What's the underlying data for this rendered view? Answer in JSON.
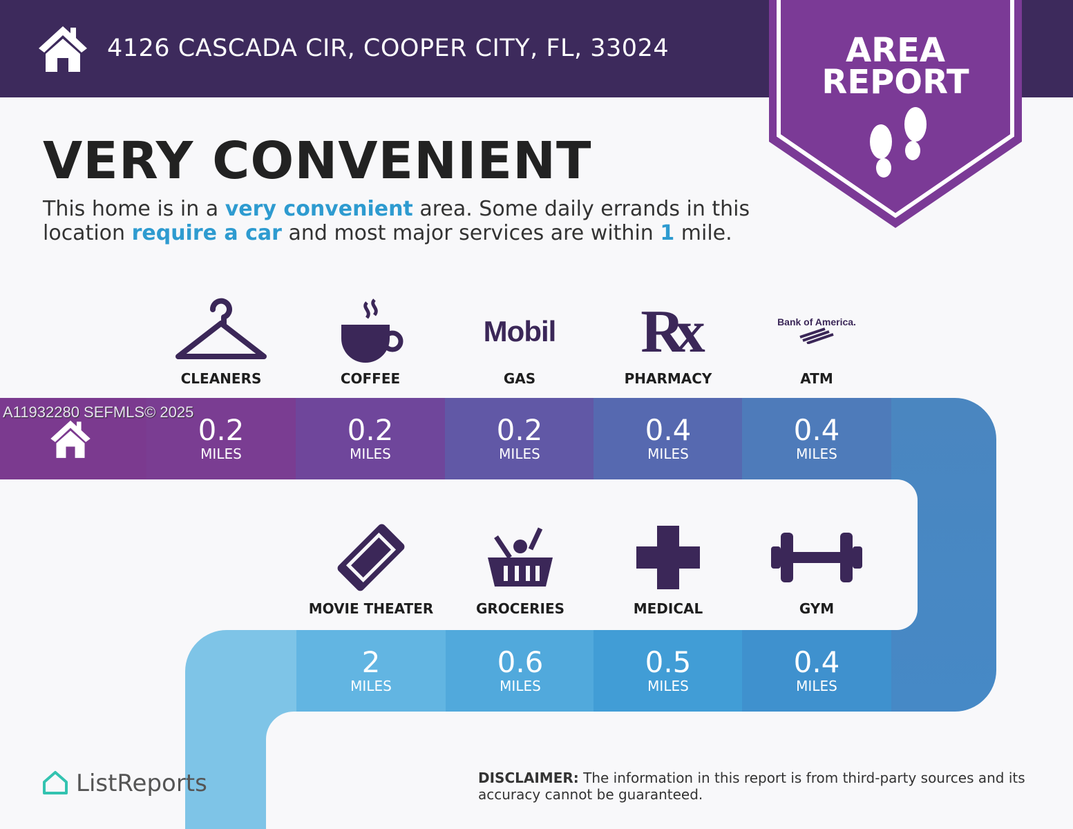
{
  "header": {
    "address": "4126 CASCADA CIR, COOPER CITY, FL, 33024",
    "icon": "home-icon"
  },
  "badge": {
    "line1": "AREA",
    "line2": "REPORT",
    "icon": "footprints-icon",
    "color": "#7b3a96"
  },
  "title": "VERY CONVENIENT",
  "description": {
    "p1": "This home is in a ",
    "h1": "very convenient",
    "p2": " area. Some daily errands in this location ",
    "h2": "require a car",
    "p3": " and most major services are within ",
    "h3": "1",
    "p4": " mile."
  },
  "watermark": "A11932280  SEFMLS© 2025",
  "row1": [
    {
      "label": "CLEANERS",
      "value": "0.2",
      "unit": "MILES",
      "icon": "hanger-icon"
    },
    {
      "label": "COFFEE",
      "value": "0.2",
      "unit": "MILES",
      "icon": "coffee-icon"
    },
    {
      "label": "GAS",
      "value": "0.2",
      "unit": "MILES",
      "icon": "mobil-logo",
      "logo_text": "Mobil"
    },
    {
      "label": "PHARMACY",
      "value": "0.4",
      "unit": "MILES",
      "icon": "rx-icon",
      "logo_text": "Rx"
    },
    {
      "label": "ATM",
      "value": "0.4",
      "unit": "MILES",
      "icon": "bank-of-america-logo",
      "logo_text": "Bank of America."
    }
  ],
  "row2": [
    {
      "label": "MOVIE THEATER",
      "value": "2",
      "unit": "MILES",
      "icon": "ticket-icon"
    },
    {
      "label": "GROCERIES",
      "value": "0.6",
      "unit": "MILES",
      "icon": "basket-icon"
    },
    {
      "label": "MEDICAL",
      "value": "0.5",
      "unit": "MILES",
      "icon": "medical-cross-icon"
    },
    {
      "label": "GYM",
      "value": "0.4",
      "unit": "MILES",
      "icon": "dumbbell-icon"
    }
  ],
  "footer": {
    "logo": "ListReports",
    "disclaimer_label": "DISCLAIMER:",
    "disclaimer_text": " The information in this report is from third-party sources and its accuracy cannot be guaranteed."
  },
  "colors": {
    "header": "#3d2a5c",
    "accent": "#2e9bd0",
    "icon": "#3b2758"
  }
}
